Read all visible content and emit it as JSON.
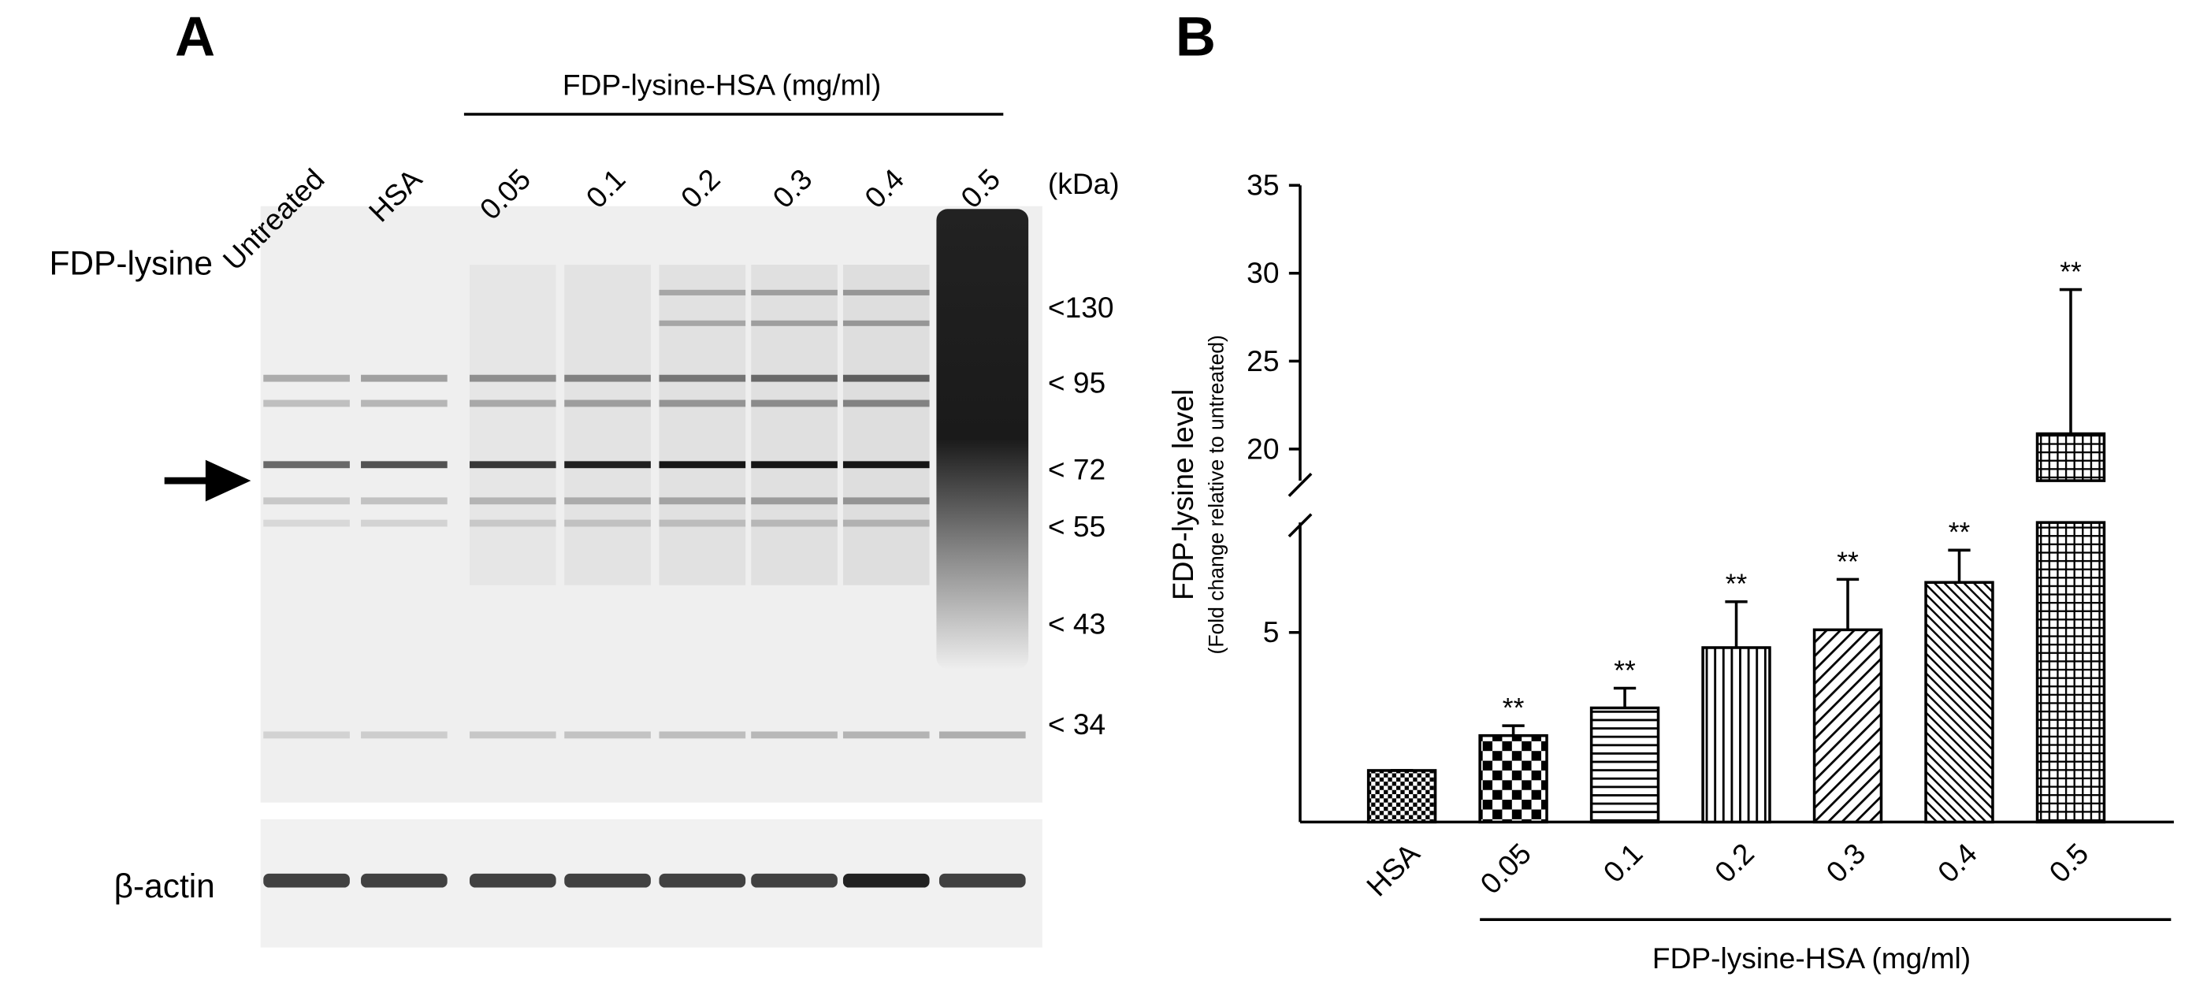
{
  "panel_a": {
    "letter": "A",
    "lanes": [
      "Untreated",
      "HSA",
      "0.05",
      "0.1",
      "0.2",
      "0.3",
      "0.4",
      "0.5"
    ],
    "group_label": "FDP-lysine-HSA (mg/ml)",
    "unit_label": "(kDa)",
    "markers": [
      "<130",
      "< 95",
      "< 72",
      "< 55",
      "< 43",
      "< 34"
    ],
    "row_labels": [
      "FDP-lysine",
      "β-actin"
    ]
  },
  "chart_data": {
    "type": "bar",
    "letter": "B",
    "categories": [
      "HSA",
      "0.05",
      "0.1",
      "0.2",
      "0.3",
      "0.4",
      "0.5"
    ],
    "values": [
      1.36,
      2.28,
      3.01,
      4.6,
      5.07,
      6.32,
      20.87
    ],
    "errors": [
      0,
      0.26,
      0.52,
      1.21,
      1.33,
      0.85,
      8.2
    ],
    "annotations": [
      null,
      "**",
      "**",
      "**",
      "**",
      "**",
      "**"
    ],
    "ylim": [
      0,
      35
    ],
    "y_break": [
      7.9,
      18.2
    ],
    "yticks": [
      5,
      20,
      25,
      30,
      35
    ],
    "y_label": "FDP-lysine  level",
    "y_sublabel": "(Fold change relative to untreated)",
    "x_label": "FDP-lysine-HSA (mg/ml)",
    "color": "#000000"
  }
}
